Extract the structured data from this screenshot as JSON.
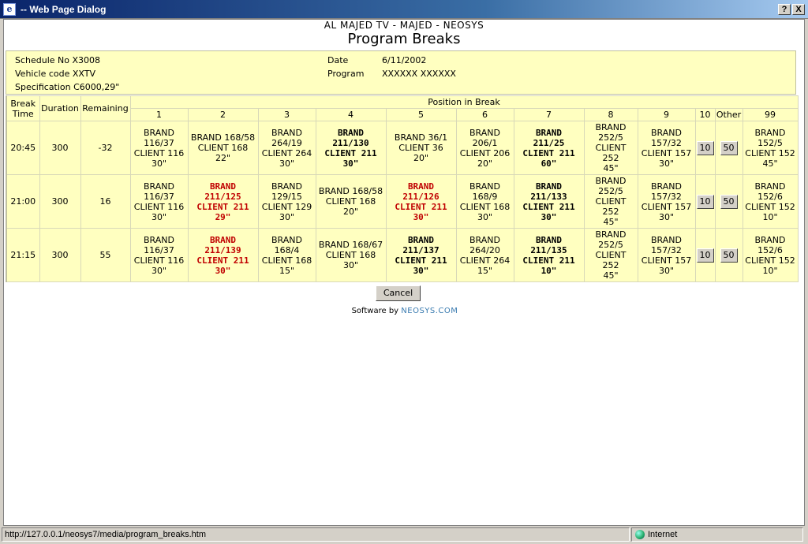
{
  "window": {
    "title": "-- Web Page Dialog",
    "help_label": "?",
    "close_label": "X"
  },
  "header": {
    "company": "AL MAJED TV - MAJED - NEOSYS",
    "title": "Program Breaks"
  },
  "info": {
    "schedule": "Schedule No X3008",
    "vehicle": "Vehicle code XXTV",
    "specification": "Specification C6000,29\"",
    "date_label": "Date",
    "date_value": "6/11/2002",
    "program_label": "Program",
    "program_value": "XXXXXX XXXXXX"
  },
  "table": {
    "headers": {
      "break_time": [
        "Break",
        "Time"
      ],
      "duration": "Duration",
      "remaining": "Remaining",
      "position": "Position in Break",
      "positions": [
        "1",
        "2",
        "3",
        "4",
        "5",
        "6",
        "7",
        "8",
        "9",
        "10",
        "Other",
        "99"
      ]
    },
    "rows": [
      {
        "time": "20:45",
        "duration": "300",
        "remaining": "-32",
        "cells": [
          {
            "style": "n",
            "lines": [
              "BRAND",
              "116/37",
              "CLIENT 116",
              "30\""
            ]
          },
          {
            "style": "n",
            "lines": [
              "BRAND 168/58",
              "CLIENT 168",
              "22\""
            ]
          },
          {
            "style": "n",
            "lines": [
              "BRAND",
              "264/19",
              "CLIENT 264",
              "30\""
            ]
          },
          {
            "style": "b",
            "lines": [
              "BRAND",
              "211/130",
              "CLIENT 211",
              "30\""
            ]
          },
          {
            "style": "n",
            "lines": [
              "BRAND 36/1",
              "CLIENT 36",
              "20\""
            ]
          },
          {
            "style": "n",
            "lines": [
              "BRAND",
              "206/1",
              "CLIENT 206",
              "20\""
            ]
          },
          {
            "style": "b",
            "lines": [
              "BRAND",
              "211/25",
              "CLIENT 211",
              "60\""
            ]
          },
          {
            "style": "n",
            "lines": [
              "BRAND",
              "252/5",
              "CLIENT",
              "252",
              "45\""
            ]
          },
          {
            "style": "n",
            "lines": [
              "BRAND",
              "157/32",
              "CLIENT 157",
              "30\""
            ]
          },
          {
            "style": "btn",
            "label": "10"
          },
          {
            "style": "btn",
            "label": "50"
          },
          {
            "style": "n",
            "lines": [
              "BRAND",
              "152/5",
              "CLIENT 152",
              "45\""
            ]
          }
        ]
      },
      {
        "time": "21:00",
        "duration": "300",
        "remaining": "16",
        "cells": [
          {
            "style": "n",
            "lines": [
              "BRAND",
              "116/37",
              "CLIENT 116",
              "30\""
            ]
          },
          {
            "style": "r",
            "lines": [
              "BRAND",
              "211/125",
              "CLIENT 211",
              "29\""
            ]
          },
          {
            "style": "n",
            "lines": [
              "BRAND",
              "129/15",
              "CLIENT 129",
              "30\""
            ]
          },
          {
            "style": "n",
            "lines": [
              "BRAND 168/58",
              "CLIENT 168",
              "20\""
            ]
          },
          {
            "style": "r",
            "lines": [
              "BRAND",
              "211/126",
              "CLIENT 211",
              "30\""
            ]
          },
          {
            "style": "n",
            "lines": [
              "BRAND",
              "168/9",
              "CLIENT 168",
              "30\""
            ]
          },
          {
            "style": "b",
            "lines": [
              "BRAND",
              "211/133",
              "CLIENT 211",
              "30\""
            ]
          },
          {
            "style": "n",
            "lines": [
              "BRAND",
              "252/5",
              "CLIENT",
              "252",
              "45\""
            ]
          },
          {
            "style": "n",
            "lines": [
              "BRAND",
              "157/32",
              "CLIENT 157",
              "30\""
            ]
          },
          {
            "style": "btn",
            "label": "10"
          },
          {
            "style": "btn",
            "label": "50"
          },
          {
            "style": "n",
            "lines": [
              "BRAND",
              "152/6",
              "CLIENT 152",
              "10\""
            ]
          }
        ]
      },
      {
        "time": "21:15",
        "duration": "300",
        "remaining": "55",
        "cells": [
          {
            "style": "n",
            "lines": [
              "BRAND",
              "116/37",
              "CLIENT 116",
              "30\""
            ]
          },
          {
            "style": "r",
            "lines": [
              "BRAND",
              "211/139",
              "CLIENT 211",
              "30\""
            ]
          },
          {
            "style": "n",
            "lines": [
              "BRAND",
              "168/4",
              "CLIENT 168",
              "15\""
            ]
          },
          {
            "style": "n",
            "lines": [
              "BRAND 168/67",
              "CLIENT 168",
              "30\""
            ]
          },
          {
            "style": "b",
            "lines": [
              "BRAND",
              "211/137",
              "CLIENT 211",
              "30\""
            ]
          },
          {
            "style": "n",
            "lines": [
              "BRAND",
              "264/20",
              "CLIENT 264",
              "15\""
            ]
          },
          {
            "style": "b",
            "lines": [
              "BRAND",
              "211/135",
              "CLIENT 211",
              "10\""
            ]
          },
          {
            "style": "n",
            "lines": [
              "BRAND",
              "252/5",
              "CLIENT",
              "252",
              "45\""
            ]
          },
          {
            "style": "n",
            "lines": [
              "BRAND",
              "157/32",
              "CLIENT 157",
              "30\""
            ]
          },
          {
            "style": "btn",
            "label": "10"
          },
          {
            "style": "btn",
            "label": "50"
          },
          {
            "style": "n",
            "lines": [
              "BRAND",
              "152/6",
              "CLIENT 152",
              "10\""
            ]
          }
        ]
      }
    ]
  },
  "actions": {
    "cancel_label": "Cancel"
  },
  "footer": {
    "prefix": "Software by ",
    "brand": "NEOSYS.COM"
  },
  "status": {
    "url": "http://127.0.0.1/neosys7/media/program_breaks.htm",
    "zone": "Internet"
  },
  "colors": {
    "cell_background": "#ffffc0",
    "highlight_red": "#c00000",
    "brand_blue": "#3a7bb0",
    "titlebar_start": "#0a246a",
    "titlebar_end": "#a6caf0"
  }
}
